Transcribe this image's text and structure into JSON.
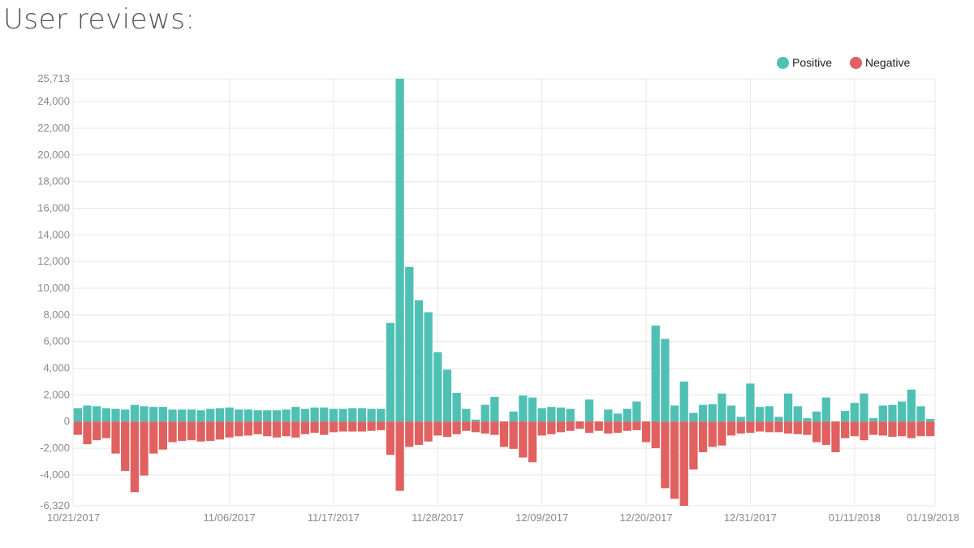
{
  "page": {
    "title": "User reviews:"
  },
  "colors": {
    "positive": "#4fc1b4",
    "negative": "#e06160",
    "grid": "#e8e8e8",
    "axis_text": "#8a8a8a"
  },
  "chart_data": {
    "type": "bar",
    "stacked_diverging": true,
    "title": "User reviews:",
    "legend": {
      "placement": "top-right",
      "items": [
        "Positive",
        "Negative"
      ]
    },
    "ylim": [
      -6320,
      25713
    ],
    "y_ticks": [
      -6320,
      -4000,
      -2000,
      0,
      2000,
      4000,
      6000,
      8000,
      10000,
      12000,
      14000,
      16000,
      18000,
      20000,
      22000,
      24000,
      25713
    ],
    "y_tick_labels": [
      "-6,320",
      "-4,000",
      "-2,000",
      "0",
      "2,000",
      "4,000",
      "6,000",
      "8,000",
      "10,000",
      "12,000",
      "14,000",
      "16,000",
      "18,000",
      "20,000",
      "22,000",
      "24,000",
      "25,713"
    ],
    "x_tick_labels": [
      {
        "label": "10/21/2017",
        "index": 0
      },
      {
        "label": "11/06/2017",
        "index": 16
      },
      {
        "label": "11/17/2017",
        "index": 27
      },
      {
        "label": "11/28/2017",
        "index": 38
      },
      {
        "label": "12/09/2017",
        "index": 49
      },
      {
        "label": "12/20/2017",
        "index": 60
      },
      {
        "label": "12/31/2017",
        "index": 71
      },
      {
        "label": "01/11/2018",
        "index": 82
      },
      {
        "label": "01/19/2018",
        "index": 90
      }
    ],
    "grid": true,
    "series": [
      {
        "name": "Positive",
        "values": [
          1000,
          1200,
          1150,
          1000,
          950,
          900,
          1250,
          1150,
          1100,
          1100,
          900,
          900,
          900,
          850,
          950,
          1000,
          1050,
          900,
          900,
          850,
          850,
          850,
          900,
          1100,
          950,
          1050,
          1050,
          950,
          950,
          1000,
          1000,
          950,
          950,
          7400,
          25713,
          11600,
          9100,
          8200,
          5200,
          3900,
          2150,
          950,
          150,
          1250,
          1850,
          -1200,
          750,
          1950,
          1800,
          1000,
          1100,
          1050,
          950,
          -500,
          1650,
          -300,
          900,
          600,
          950,
          1500,
          -1300,
          7200,
          6200,
          1200,
          3000,
          650,
          1250,
          1300,
          2100,
          1200,
          350,
          2850,
          1100,
          1150,
          350,
          2100,
          1150,
          250,
          750,
          1800,
          -800,
          800,
          1400,
          2100,
          250,
          1200,
          1250,
          1500,
          2400,
          1150,
          200
        ]
      },
      {
        "name": "Negative",
        "values": [
          -1000,
          -1700,
          -1400,
          -1250,
          -2400,
          -3700,
          -5300,
          -4050,
          -2400,
          -2100,
          -1550,
          -1450,
          -1400,
          -1500,
          -1450,
          -1350,
          -1200,
          -1100,
          -1050,
          -950,
          -1100,
          -1200,
          -1100,
          -1200,
          -950,
          -850,
          -1000,
          -800,
          -750,
          -750,
          -750,
          -700,
          -650,
          -2500,
          -5200,
          -1900,
          -1750,
          -1500,
          -1050,
          -1150,
          -950,
          -700,
          -800,
          -900,
          -1000,
          -1900,
          -2050,
          -2700,
          -3050,
          -1050,
          -950,
          -800,
          -700,
          -550,
          -850,
          -700,
          -900,
          -850,
          -700,
          -650,
          -1550,
          -2000,
          -5000,
          -5800,
          -6320,
          -3600,
          -2300,
          -1900,
          -1800,
          -1050,
          -900,
          -850,
          -750,
          -800,
          -800,
          -900,
          -950,
          -1000,
          -1550,
          -1750,
          -2300,
          -1250,
          -1100,
          -1400,
          -1000,
          -1050,
          -1150,
          -1100,
          -1250,
          -1100,
          -1100
        ]
      }
    ]
  }
}
